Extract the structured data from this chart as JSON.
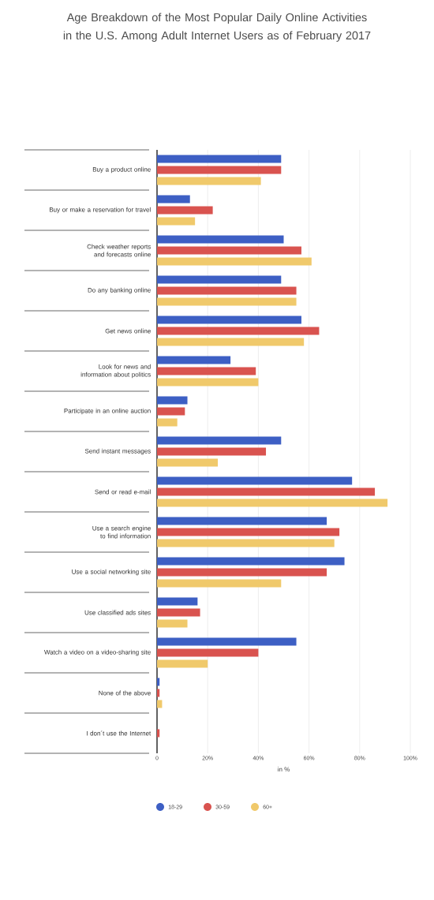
{
  "chart_data": {
    "type": "bar",
    "orientation": "horizontal",
    "title": "Age Breakdown of the Most Popular Daily Online Activities in the U.S. Among Adult Internet Users as of February 2017",
    "xlabel": "in %",
    "categories": [
      "Buy a product online",
      "Buy or make a reservation for travel",
      "Check weather reports and forecasts online",
      "Do any banking online",
      "Get news online",
      "Look for news and information about politics",
      "Participate in an online auction",
      "Send instant messages",
      "Send or read e-mail",
      "Use a search engine to find information",
      "Use a social networking site",
      "Use classified ads sites",
      "Watch a video on a video-sharing site",
      "None of the above",
      "I don´t use the Internet"
    ],
    "series": [
      {
        "name": "18-29",
        "color": "#3d5fc4",
        "values": [
          49,
          13,
          50,
          49,
          57,
          29,
          12,
          49,
          77,
          67,
          74,
          16,
          55,
          1,
          0
        ]
      },
      {
        "name": "30-59",
        "color": "#d9534f",
        "values": [
          49,
          22,
          57,
          55,
          64,
          39,
          11,
          43,
          86,
          72,
          67,
          17,
          40,
          1,
          1
        ]
      },
      {
        "name": "60+",
        "color": "#f0c96b",
        "values": [
          41,
          15,
          61,
          55,
          58,
          40,
          8,
          24,
          91,
          70,
          49,
          12,
          20,
          2,
          0
        ]
      }
    ],
    "xlim": [
      0,
      100
    ],
    "xticks": [
      {
        "value": 0,
        "label": "0"
      },
      {
        "value": 20,
        "label": "20%"
      },
      {
        "value": 40,
        "label": "40%"
      },
      {
        "value": 60,
        "label": "60%"
      },
      {
        "value": 80,
        "label": "80%"
      },
      {
        "value": 100,
        "label": "100%"
      }
    ],
    "grid": "x",
    "legend": "bottom"
  }
}
